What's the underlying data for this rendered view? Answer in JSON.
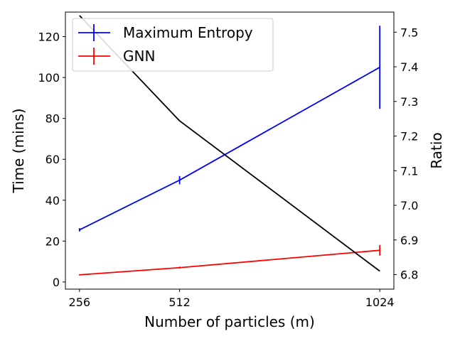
{
  "chart_data": {
    "type": "line",
    "xlabel": "Number of particles (m)",
    "ylabel": "Time (mins)",
    "y2label": "Ratio",
    "x": [
      256,
      512,
      1024
    ],
    "x_ticks": [
      256,
      512,
      1024
    ],
    "xlim": [
      220,
      1060
    ],
    "ylim": [
      -3.5,
      132
    ],
    "y_ticks": [
      0,
      20,
      40,
      60,
      80,
      100,
      120
    ],
    "y2lim": [
      6.758,
      7.558
    ],
    "y2_ticks": [
      6.8,
      6.9,
      7.0,
      7.1,
      7.2,
      7.3,
      7.4,
      7.5
    ],
    "y2_tick_labels": [
      "6.8",
      "6.9",
      "7.0",
      "7.1",
      "7.2",
      "7.3",
      "7.4",
      "7.5"
    ],
    "grid": false,
    "legend": "top-left",
    "series": [
      {
        "name": "Maximum Entropy",
        "color": "#0000ff",
        "axis": "left",
        "values": [
          25.5,
          49.8,
          105.0
        ],
        "errors": [
          0.8,
          2.0,
          20.3
        ]
      },
      {
        "name": "GNN",
        "color": "#ff0000",
        "axis": "left",
        "values": [
          3.5,
          7.0,
          15.5
        ],
        "errors": [
          0.3,
          0.5,
          2.6
        ]
      },
      {
        "color": "#000000",
        "axis": "right",
        "values": [
          7.548,
          7.244,
          6.81
        ]
      }
    ]
  }
}
